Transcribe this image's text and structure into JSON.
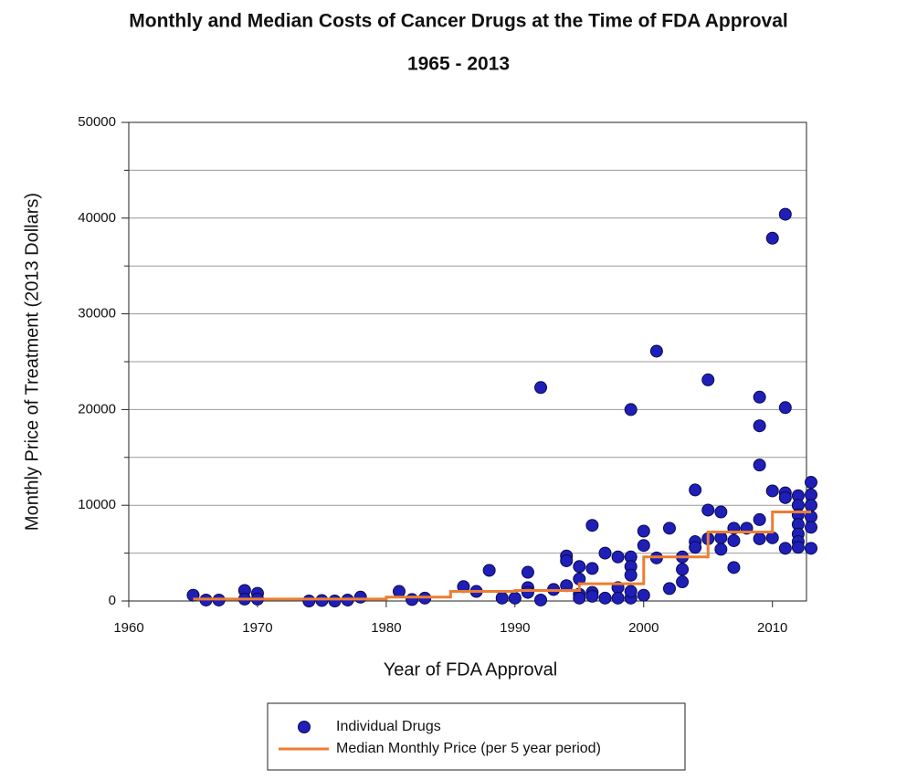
{
  "chart_data": {
    "type": "scatter",
    "title": "Monthly and Median Costs of Cancer Drugs at the Time of FDA Approval",
    "subtitle": "1965 - 2013",
    "x_label": "Year of FDA Approval",
    "y_label": "Monthly Price of Treatment (2013 Dollars)",
    "xlim": [
      1960,
      2013
    ],
    "ylim": [
      0,
      50000
    ],
    "xticks": [
      1960,
      1970,
      1980,
      1990,
      2000,
      2010
    ],
    "yticks": [
      0,
      10000,
      20000,
      30000,
      40000,
      50000
    ],
    "y_minor_ticks": [
      5000,
      15000,
      25000,
      35000,
      45000
    ],
    "grid": true,
    "legend": "bottom",
    "series": [
      {
        "name": "Individual Drugs",
        "type": "scatter",
        "color": "#1f1fb8",
        "x": [
          1965,
          1966,
          1967,
          1969,
          1969,
          1970,
          1970,
          1974,
          1975,
          1976,
          1977,
          1978,
          1981,
          1982,
          1983,
          1986,
          1987,
          1988,
          1989,
          1990,
          1991,
          1991,
          1991,
          1992,
          1992,
          1993,
          1994,
          1994,
          1994,
          1995,
          1995,
          1995,
          1995,
          1996,
          1996,
          1996,
          1996,
          1997,
          1997,
          1998,
          1998,
          1998,
          1999,
          1999,
          1999,
          1999,
          1999,
          1999,
          2000,
          2000,
          2000,
          2001,
          2001,
          2002,
          2002,
          2003,
          2003,
          2003,
          2004,
          2004,
          2004,
          2005,
          2005,
          2005,
          2006,
          2006,
          2006,
          2007,
          2007,
          2007,
          2008,
          2009,
          2009,
          2009,
          2009,
          2009,
          2010,
          2010,
          2010,
          2011,
          2011,
          2011,
          2011,
          2011,
          2012,
          2012,
          2012,
          2012,
          2012,
          2012,
          2012,
          2013,
          2013,
          2013,
          2013,
          2013,
          2013
        ],
        "values": [
          600,
          100,
          100,
          1100,
          200,
          800,
          200,
          0,
          50,
          0,
          100,
          400,
          1000,
          150,
          300,
          1500,
          1000,
          3200,
          300,
          300,
          3000,
          1400,
          900,
          22300,
          100,
          1200,
          4700,
          4200,
          1600,
          3600,
          2300,
          700,
          300,
          7900,
          3400,
          900,
          500,
          5000,
          300,
          4600,
          1400,
          300,
          4600,
          3600,
          2700,
          20000,
          300,
          1000,
          7300,
          5800,
          600,
          26100,
          4500,
          7600,
          1300,
          4600,
          3300,
          2000,
          11600,
          6200,
          5600,
          23100,
          9500,
          6500,
          9300,
          6600,
          5400,
          7600,
          6300,
          3500,
          7600,
          21300,
          18300,
          14200,
          8500,
          6500,
          37900,
          11500,
          6600,
          40400,
          20200,
          11300,
          10800,
          5500,
          11000,
          10000,
          9000,
          8000,
          7000,
          6200,
          5600,
          12400,
          11100,
          10000,
          8800,
          7700,
          5500
        ]
      },
      {
        "name": "Median Monthly Price (per 5 year period)",
        "type": "line",
        "color": "#ed7d31",
        "x": [
          1965,
          1980,
          1980,
          1985,
          1985,
          1990,
          1990,
          1995,
          1995,
          2000,
          2000,
          2005,
          2005,
          2010,
          2010,
          2013
        ],
        "values": [
          200,
          200,
          400,
          400,
          1000,
          1000,
          1100,
          1100,
          1800,
          1800,
          4600,
          4600,
          7200,
          7200,
          9300,
          9300
        ]
      }
    ]
  }
}
